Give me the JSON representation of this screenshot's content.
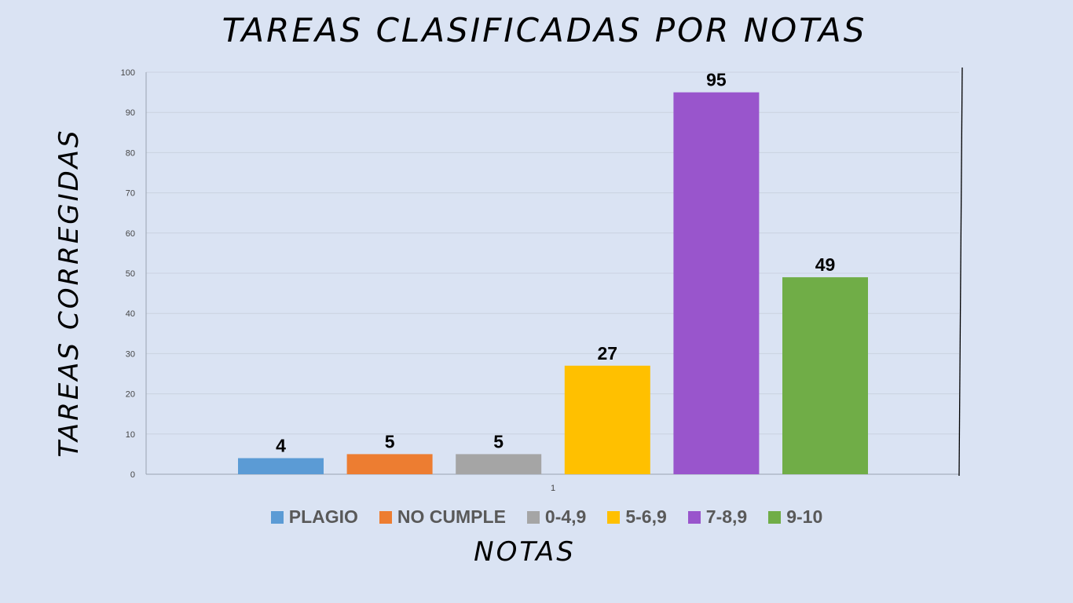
{
  "chart_data": {
    "type": "bar",
    "title": "TAREAS CLASIFICADAS POR NOTAS",
    "xlabel": "NOTAS",
    "ylabel": "TAREAS CORREGIDAS",
    "categories": [
      "1"
    ],
    "ylim": [
      0,
      100
    ],
    "yticks": [
      0,
      10,
      20,
      30,
      40,
      50,
      60,
      70,
      80,
      90,
      100
    ],
    "grid": true,
    "legend_position": "bottom",
    "series": [
      {
        "name": "PLAGIO",
        "values": [
          4
        ],
        "color": "#5b9bd5"
      },
      {
        "name": "NO CUMPLE",
        "values": [
          5
        ],
        "color": "#ed7d31"
      },
      {
        "name": "0-4,9",
        "values": [
          5
        ],
        "color": "#a5a5a5"
      },
      {
        "name": "5-6,9",
        "values": [
          27
        ],
        "color": "#ffc000"
      },
      {
        "name": "7-8,9",
        "values": [
          95
        ],
        "color": "#9955cc"
      },
      {
        "name": "9-10",
        "values": [
          49
        ],
        "color": "#70ad47"
      }
    ]
  }
}
